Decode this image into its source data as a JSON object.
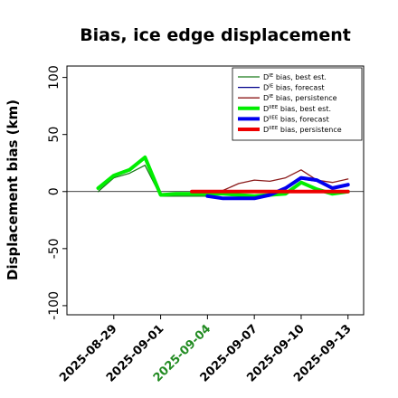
{
  "chart_data": {
    "type": "line",
    "title": "Bias, ice edge displacement",
    "ylabel": "Displacement bias (km)",
    "xlabel": "",
    "ylim": [
      -108,
      110
    ],
    "yticks": [
      100,
      50,
      0,
      -50,
      -100
    ],
    "xticks": [
      {
        "date": "2025-08-29",
        "label": "2025-08-29",
        "color": "#000000"
      },
      {
        "date": "2025-09-01",
        "label": "2025-09-01",
        "color": "#000000"
      },
      {
        "date": "2025-09-04",
        "label": "2025-09-04",
        "color": "#228B22"
      },
      {
        "date": "2025-09-07",
        "label": "2025-09-07",
        "color": "#000000"
      },
      {
        "date": "2025-09-10",
        "label": "2025-09-10",
        "color": "#000000"
      },
      {
        "date": "2025-09-13",
        "label": "2025-09-13",
        "color": "#000000"
      }
    ],
    "xlim": [
      "2025-08-26",
      "2025-09-14"
    ],
    "zero_line": true,
    "legend_position": "top-right",
    "series": [
      {
        "name": "D^IE bias, best est.",
        "sup": "IE",
        "pre": "D",
        "post": " bias, best est.",
        "color": "#1a7a1a",
        "width": 1.3,
        "points": [
          [
            "2025-08-28",
            0
          ],
          [
            "2025-08-29",
            12
          ],
          [
            "2025-08-30",
            16
          ],
          [
            "2025-08-31",
            23
          ],
          [
            "2025-09-01",
            -4
          ],
          [
            "2025-09-02",
            -4
          ],
          [
            "2025-09-03",
            -4
          ],
          [
            "2025-09-04",
            -4
          ]
        ]
      },
      {
        "name": "D^IE bias, forecast",
        "sup": "IE",
        "pre": "D",
        "post": " bias, forecast",
        "color": "#00008b",
        "width": 1.3,
        "points": [
          [
            "2025-09-04",
            -4
          ],
          [
            "2025-09-05",
            -6
          ],
          [
            "2025-09-06",
            -6
          ],
          [
            "2025-09-07",
            -6
          ],
          [
            "2025-09-08",
            -4
          ],
          [
            "2025-09-09",
            2
          ],
          [
            "2025-09-10",
            11
          ],
          [
            "2025-09-11",
            9
          ],
          [
            "2025-09-12",
            3
          ],
          [
            "2025-09-13",
            5
          ]
        ]
      },
      {
        "name": "D^IE bias, persistence",
        "sup": "IE",
        "pre": "D",
        "post": " bias, persistence",
        "color": "#8b1a1a",
        "width": 1.3,
        "points": [
          [
            "2025-09-04",
            0
          ],
          [
            "2025-09-05",
            1
          ],
          [
            "2025-09-06",
            7
          ],
          [
            "2025-09-07",
            10
          ],
          [
            "2025-09-08",
            9
          ],
          [
            "2025-09-09",
            12
          ],
          [
            "2025-09-10",
            19
          ],
          [
            "2025-09-11",
            10
          ],
          [
            "2025-09-12",
            8
          ],
          [
            "2025-09-13",
            11
          ]
        ]
      },
      {
        "name": "D^IIEE bias, best est.",
        "sup": "IIEE",
        "pre": "D",
        "post": " bias, best est.",
        "color": "#00ee00",
        "width": 4,
        "points": [
          [
            "2025-08-28",
            3
          ],
          [
            "2025-08-29",
            14
          ],
          [
            "2025-08-30",
            19
          ],
          [
            "2025-08-31",
            30
          ],
          [
            "2025-09-01",
            -3
          ],
          [
            "2025-09-02",
            -2
          ],
          [
            "2025-09-03",
            -2
          ],
          [
            "2025-09-04",
            -2
          ],
          [
            "2025-09-05",
            -2
          ],
          [
            "2025-09-06",
            -3
          ],
          [
            "2025-09-07",
            -4
          ],
          [
            "2025-09-08",
            -3
          ],
          [
            "2025-09-09",
            -2
          ],
          [
            "2025-09-10",
            8
          ],
          [
            "2025-09-11",
            2
          ],
          [
            "2025-09-12",
            -2
          ],
          [
            "2025-09-13",
            0
          ]
        ]
      },
      {
        "name": "D^IIEE bias, forecast",
        "sup": "IIEE",
        "pre": "D",
        "post": " bias, forecast",
        "color": "#0000ee",
        "width": 4,
        "points": [
          [
            "2025-09-04",
            -4
          ],
          [
            "2025-09-05",
            -6
          ],
          [
            "2025-09-06",
            -6
          ],
          [
            "2025-09-07",
            -6
          ],
          [
            "2025-09-08",
            -3
          ],
          [
            "2025-09-09",
            3
          ],
          [
            "2025-09-10",
            12
          ],
          [
            "2025-09-11",
            10
          ],
          [
            "2025-09-12",
            3
          ],
          [
            "2025-09-13",
            6
          ]
        ]
      },
      {
        "name": "D^IIEE bias, persistence",
        "sup": "IIEE",
        "pre": "D",
        "post": " bias, persistence",
        "color": "#ee0000",
        "width": 4,
        "points": [
          [
            "2025-09-03",
            0
          ],
          [
            "2025-09-04",
            0
          ],
          [
            "2025-09-05",
            0
          ],
          [
            "2025-09-06",
            0
          ],
          [
            "2025-09-07",
            0
          ],
          [
            "2025-09-08",
            0
          ],
          [
            "2025-09-09",
            0
          ],
          [
            "2025-09-10",
            0
          ],
          [
            "2025-09-11",
            0
          ],
          [
            "2025-09-12",
            0
          ],
          [
            "2025-09-13",
            0
          ]
        ]
      }
    ]
  }
}
